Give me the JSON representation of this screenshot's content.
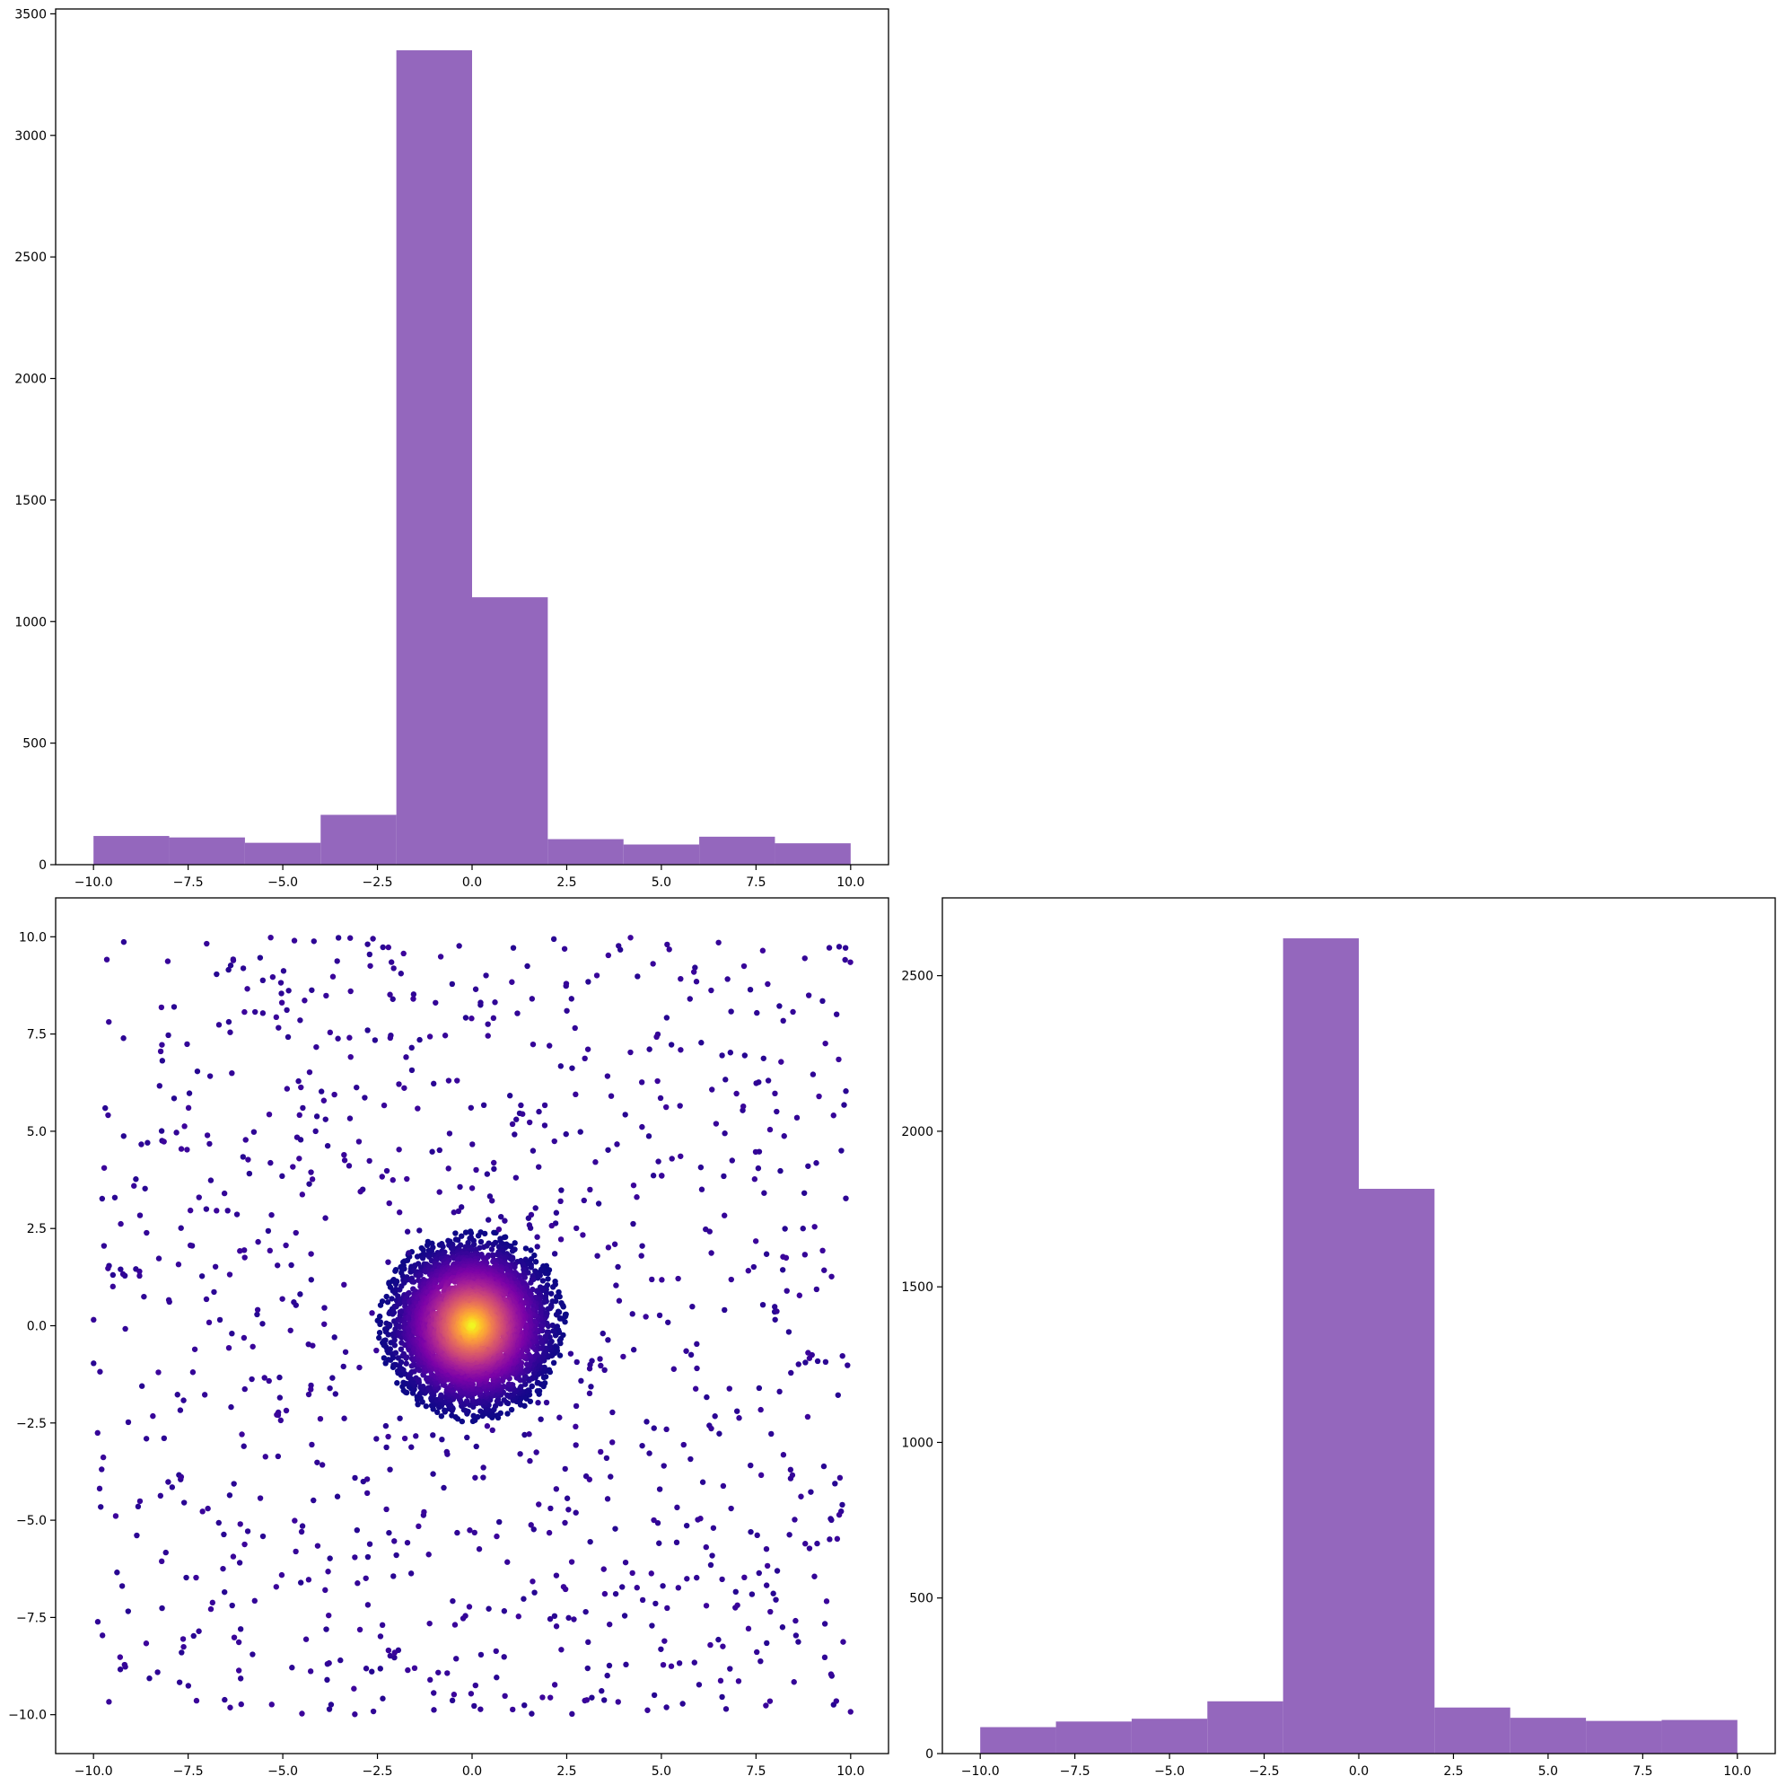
{
  "colors": {
    "bar_fill": "#9467bd",
    "colormap": "plasma",
    "axis": "#000000",
    "background": "#ffffff"
  },
  "chart_data": [
    {
      "type": "bar",
      "panel": "top-left",
      "title": "",
      "xlabel": "",
      "ylabel": "",
      "bin_edges": [
        -10,
        -8,
        -6,
        -4,
        -2,
        0,
        2,
        4,
        6,
        8,
        10
      ],
      "values": [
        118,
        112,
        90,
        205,
        3350,
        1100,
        105,
        83,
        115,
        88
      ],
      "xlim": [
        -11.0,
        11.0
      ],
      "ylim": [
        0,
        3520
      ],
      "xticks": [
        -10.0,
        -7.5,
        -5.0,
        -2.5,
        0.0,
        2.5,
        5.0,
        7.5,
        10.0
      ],
      "xtick_labels": [
        "−10.0",
        "−7.5",
        "−5.0",
        "−2.5",
        "0.0",
        "2.5",
        "5.0",
        "7.5",
        "10.0"
      ],
      "yticks": [
        0,
        500,
        1000,
        1500,
        2000,
        2500,
        3000,
        3500
      ],
      "ytick_labels": [
        "0",
        "500",
        "1000",
        "1500",
        "2000",
        "2500",
        "3000",
        "3500"
      ],
      "grid": false
    },
    {
      "type": "scatter",
      "panel": "bottom-left",
      "title": "",
      "xlabel": "",
      "ylabel": "",
      "description_of_points": "Dense Gaussian cluster centered at (0, 0) with radius ~2.5, colored by density (plasma colormap: yellow at center to purple at edge), plus ~1000 uniformly scattered dark-purple points over [-10, 10] x [-10, 10].",
      "cluster": {
        "center": [
          0,
          0
        ],
        "radius": 2.5,
        "count": 5000
      },
      "background_points": {
        "xrange": [
          -10,
          10
        ],
        "yrange": [
          -10,
          10
        ],
        "count": 1000
      },
      "xlim": [
        -11.0,
        11.0
      ],
      "ylim": [
        -11.0,
        11.0
      ],
      "xticks": [
        -10.0,
        -7.5,
        -5.0,
        -2.5,
        0.0,
        2.5,
        5.0,
        7.5,
        10.0
      ],
      "xtick_labels": [
        "−10.0",
        "−7.5",
        "−5.0",
        "−2.5",
        "0.0",
        "2.5",
        "5.0",
        "7.5",
        "10.0"
      ],
      "yticks": [
        -10.0,
        -7.5,
        -5.0,
        -2.5,
        0.0,
        2.5,
        5.0,
        7.5,
        10.0
      ],
      "ytick_labels": [
        "−10.0",
        "−7.5",
        "−5.0",
        "−2.5",
        "0.0",
        "2.5",
        "5.0",
        "7.5",
        "10.0"
      ],
      "grid": false
    },
    {
      "type": "bar",
      "panel": "bottom-right",
      "title": "",
      "xlabel": "",
      "ylabel": "",
      "bin_edges": [
        -10,
        -8,
        -6,
        -4,
        -2,
        0,
        2,
        4,
        6,
        8,
        10
      ],
      "values": [
        85,
        103,
        112,
        168,
        2620,
        1815,
        148,
        115,
        105,
        108
      ],
      "xlim": [
        -11.0,
        11.0
      ],
      "ylim": [
        0,
        2750
      ],
      "xticks": [
        -10.0,
        -7.5,
        -5.0,
        -2.5,
        0.0,
        2.5,
        5.0,
        7.5,
        10.0
      ],
      "xtick_labels": [
        "−10.0",
        "−7.5",
        "−5.0",
        "−2.5",
        "0.0",
        "2.5",
        "5.0",
        "7.5",
        "10.0"
      ],
      "yticks": [
        0,
        500,
        1000,
        1500,
        2000,
        2500
      ],
      "ytick_labels": [
        "0",
        "500",
        "1000",
        "1500",
        "2000",
        "2500"
      ],
      "grid": false
    }
  ]
}
